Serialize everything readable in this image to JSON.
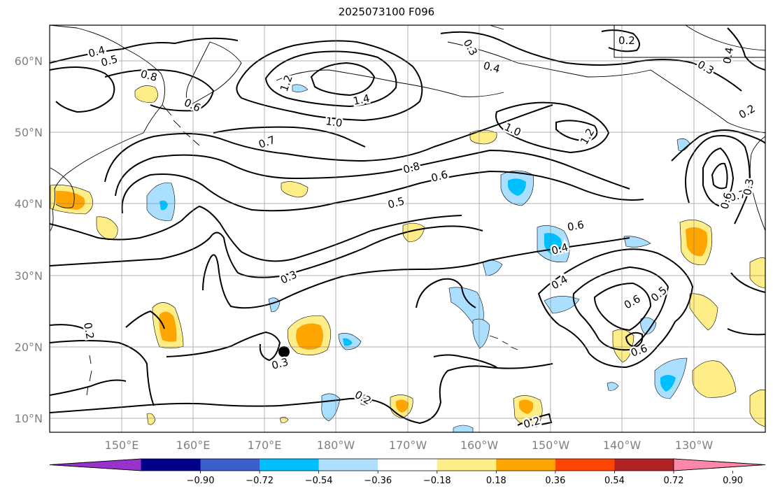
{
  "title": "2025073100 F096",
  "map": {
    "lat_ticks": [
      "60°N",
      "50°N",
      "40°N",
      "30°N",
      "20°N",
      "10°N"
    ],
    "lon_ticks": [
      "150°E",
      "160°E",
      "170°E",
      "180°W",
      "170°W",
      "160°W",
      "150°W",
      "140°W",
      "130°W"
    ],
    "contour_labels": [
      "0.4",
      "0.5",
      "0.8",
      "0.6",
      "1.2",
      "1.4",
      "1.0",
      "0.3",
      "0.4",
      "0.2",
      "0.3",
      "0.4",
      "0.2",
      "1.0",
      "1.2",
      "0.7",
      "0.8",
      "0.6",
      "0.5",
      "0.6",
      "0.4",
      "0.4",
      "0.6",
      "0.5",
      "0.6",
      "0.3",
      "0.2",
      "0.3",
      "0.2",
      "0.7",
      "0.6",
      "0.3"
    ],
    "colors": {
      "contour": "#000000",
      "coast": "#000000",
      "grid": "#808080",
      "pos_light": "#ffee88",
      "pos_mid": "#ffa500",
      "neg_light": "#aadfff",
      "neg_mid": "#00bfff"
    }
  },
  "colorbar": {
    "colors": [
      "#9932cc",
      "#00008b",
      "#3a5fcd",
      "#00bfff",
      "#afe0ff",
      "#ffffff",
      "#ffee88",
      "#ffa500",
      "#ff4500",
      "#b22222",
      "#ff88aa"
    ],
    "tick_labels": [
      "−0.90",
      "−0.72",
      "−0.54",
      "−0.36",
      "−0.18",
      "0.18",
      "0.36",
      "0.54",
      "0.72",
      "0.90"
    ]
  }
}
